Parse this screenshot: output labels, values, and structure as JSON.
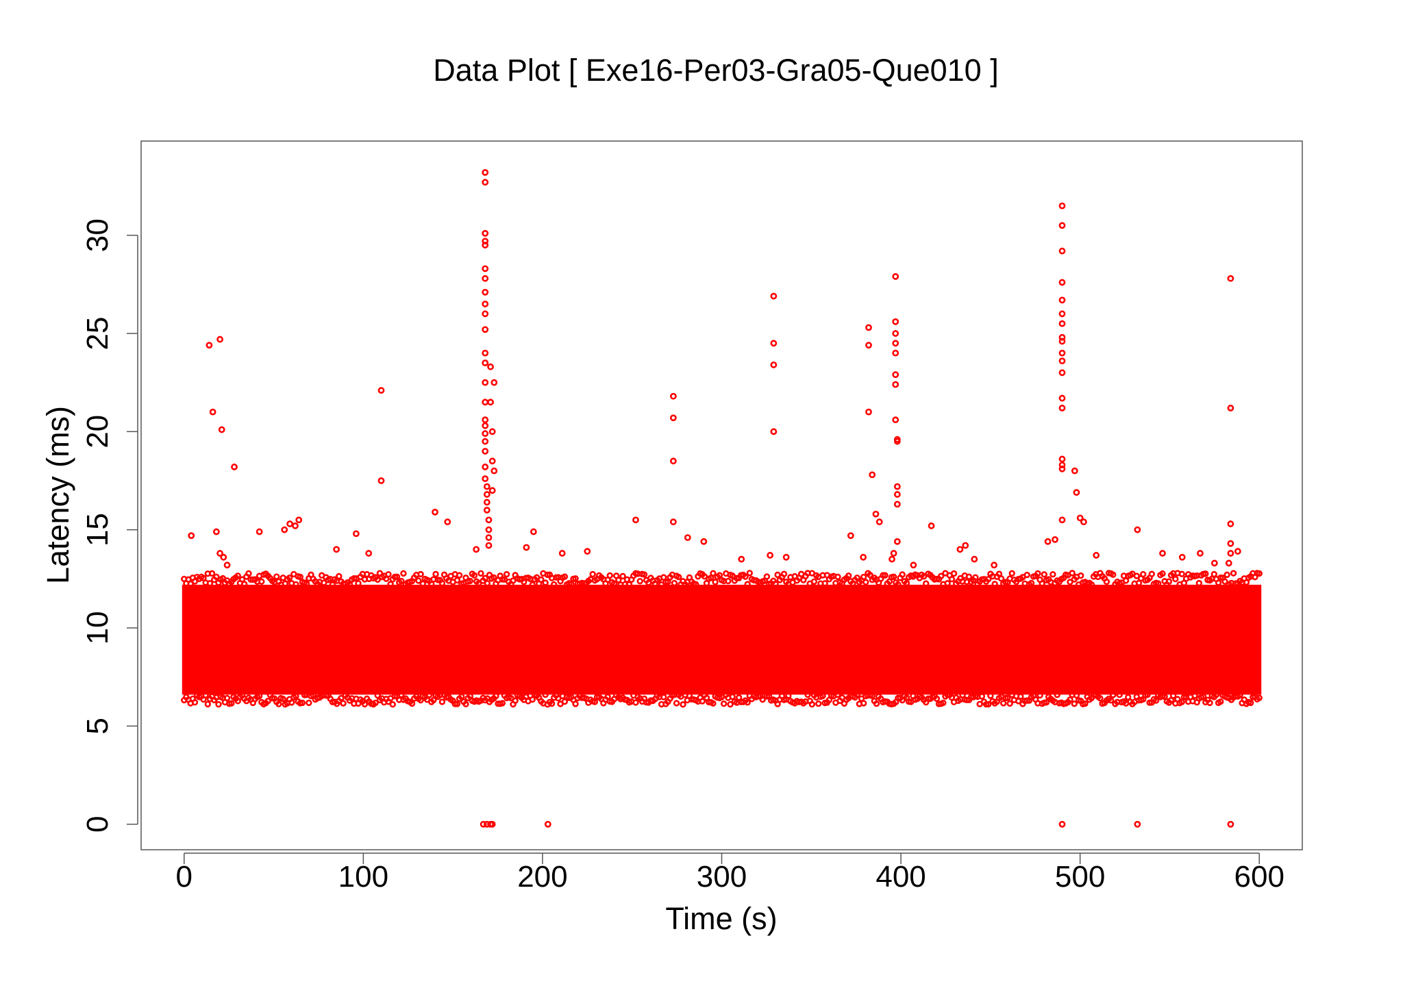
{
  "chart_data": {
    "type": "scatter",
    "title": "Data Plot [ Exe16-Per03-Gra05-Que010 ]",
    "xlabel": "Time (s)",
    "ylabel": "Latency (ms)",
    "xlim": [
      -24,
      624
    ],
    "ylim": [
      -1.3,
      34.8
    ],
    "xticks": [
      0,
      100,
      200,
      300,
      400,
      500,
      600
    ],
    "yticks": [
      0,
      5,
      10,
      15,
      20,
      25,
      30
    ],
    "grid": false,
    "legend": "none",
    "marker": "open-circle",
    "color": "#ff0000",
    "dense_band": {
      "x_range": [
        0,
        600
      ],
      "y_range": [
        6.6,
        12.2
      ],
      "description_values": {
        "low": 6.6,
        "high": 12.2
      }
    },
    "series": [
      {
        "x": [
          168,
          168,
          168,
          168,
          168,
          168,
          168,
          168,
          168,
          168,
          168,
          168,
          168,
          168,
          168,
          168,
          168,
          168,
          168,
          168,
          168,
          168,
          169,
          169,
          169,
          169,
          170,
          170,
          170,
          170,
          171,
          171,
          172,
          172,
          172,
          173,
          173,
          14,
          20,
          16,
          21,
          28,
          110,
          110,
          273,
          273,
          273,
          273,
          329,
          329,
          329,
          329,
          382,
          382,
          382,
          384,
          386,
          388,
          397,
          397,
          397,
          397,
          397,
          397,
          397,
          397,
          398,
          398,
          398,
          398,
          398,
          398,
          396,
          395,
          490,
          490,
          490,
          490,
          490,
          490,
          490,
          490,
          490,
          490,
          490,
          490,
          490,
          490,
          490,
          490,
          490,
          490,
          497,
          498,
          500,
          502,
          584,
          584,
          584,
          584,
          584,
          583,
          4,
          18,
          20,
          22,
          24,
          42,
          56,
          59,
          62,
          64,
          85,
          96,
          103,
          140,
          147,
          163,
          191,
          195,
          211,
          225,
          252,
          281,
          290,
          311,
          327,
          336,
          372,
          379,
          407,
          417,
          433,
          436,
          441,
          452,
          482,
          486,
          509,
          532,
          546,
          557,
          567,
          575,
          588,
          167,
          169,
          171,
          172,
          203,
          490,
          532,
          584
        ],
        "y": [
          33.2,
          32.7,
          30.1,
          29.7,
          29.5,
          28.3,
          27.8,
          27.1,
          26.5,
          26.0,
          25.2,
          24.0,
          23.5,
          22.5,
          21.5,
          20.6,
          20.3,
          19.9,
          19.5,
          19.0,
          18.2,
          17.6,
          17.2,
          16.8,
          16.4,
          16.0,
          15.5,
          15.0,
          14.6,
          14.2,
          23.3,
          21.5,
          20.0,
          18.5,
          17.0,
          18.0,
          22.5,
          24.4,
          24.7,
          21.0,
          20.1,
          18.2,
          22.1,
          17.5,
          21.8,
          20.7,
          18.5,
          15.4,
          26.9,
          24.5,
          23.4,
          20.0,
          25.3,
          24.4,
          21.0,
          17.8,
          15.8,
          15.4,
          27.9,
          25.6,
          25.0,
          24.5,
          24.0,
          22.9,
          22.4,
          20.6,
          19.6,
          19.5,
          17.2,
          16.8,
          16.3,
          14.4,
          13.8,
          13.5,
          31.5,
          30.5,
          29.2,
          27.6,
          26.7,
          26.0,
          25.5,
          24.8,
          24.6,
          24.0,
          23.6,
          23.0,
          21.7,
          21.2,
          18.6,
          18.3,
          18.1,
          15.5,
          18.0,
          16.9,
          15.6,
          15.4,
          27.8,
          21.2,
          15.3,
          14.3,
          13.8,
          13.3,
          14.7,
          14.9,
          13.8,
          13.6,
          13.2,
          14.9,
          15.0,
          15.3,
          15.2,
          15.5,
          14.0,
          14.8,
          13.8,
          15.9,
          15.4,
          14.0,
          14.1,
          14.9,
          13.8,
          13.9,
          15.5,
          14.6,
          14.4,
          13.5,
          13.7,
          13.6,
          14.7,
          13.6,
          13.2,
          15.2,
          14.0,
          14.2,
          13.5,
          13.2,
          14.4,
          14.5,
          13.7,
          15.0,
          13.8,
          13.6,
          13.8,
          13.3,
          13.9,
          0,
          0,
          0,
          0,
          0,
          0,
          0,
          0
        ]
      }
    ]
  }
}
